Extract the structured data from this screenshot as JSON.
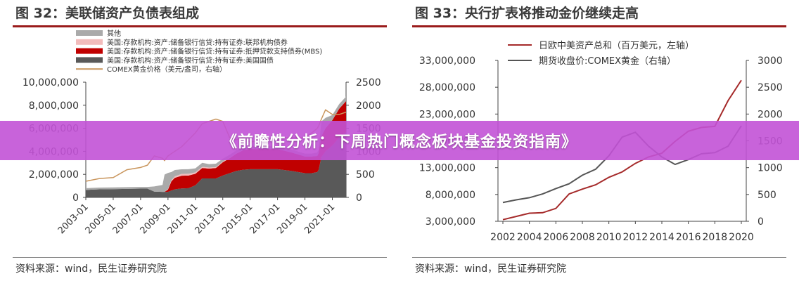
{
  "banner": {
    "text": "《前瞻性分析：下周热门概念板块基金投资指南》"
  },
  "left": {
    "title": "图 32：美联储资产负债表组成",
    "source": "资料来源：wind，民生证券研究院"
  },
  "right": {
    "title": "图 33：央行扩表将推动金价继续走高",
    "source": "资料来源：wind，民生证券研究院"
  },
  "colors": {
    "other": "#aaaaaa",
    "agency": "#f2bcbc",
    "mbs": "#c00000",
    "treasury": "#595959",
    "gold_left": "#c9955c",
    "assets_line": "#a52a2a",
    "gold_right": "#555555",
    "banner": "#c252d6"
  },
  "chart_data": [
    {
      "type": "area",
      "title": "",
      "stacked": true,
      "x": [
        2003.0,
        2004.0,
        2005.0,
        2006.0,
        2007.0,
        2007.5,
        2008.0,
        2008.6,
        2008.75,
        2009.0,
        2009.25,
        2009.5,
        2010.0,
        2010.5,
        2011.0,
        2011.5,
        2012.0,
        2012.5,
        2013.0,
        2013.5,
        2014.0,
        2014.5,
        2015.0,
        2016.0,
        2017.0,
        2018.0,
        2019.0,
        2019.5,
        2019.9,
        2020.0,
        2020.2,
        2020.5,
        2021.0,
        2021.5,
        2022.0
      ],
      "x_tick_labels": [
        "2003-01",
        "2005-01",
        "2007-01",
        "2009-01",
        "2011-01",
        "2013-01",
        "2015-01",
        "2017-01",
        "2019-01",
        "2021-01"
      ],
      "x_ticks": [
        2003,
        2005,
        2007,
        2009,
        2011,
        2013,
        2015,
        2017,
        2019,
        2021
      ],
      "y_left_ticks": [
        "0",
        "2,000,000",
        "4,000,000",
        "6,000,000",
        "8,000,000",
        "10,000,000"
      ],
      "y_left_tick_values": [
        0,
        2000000,
        4000000,
        6000000,
        8000000,
        10000000
      ],
      "y_right_ticks": [
        "0",
        "500",
        "1000",
        "1500",
        "2000",
        "2500"
      ],
      "y_right_tick_values": [
        0,
        500,
        1000,
        1500,
        2000,
        2500
      ],
      "ylim_left": [
        0,
        10000000
      ],
      "ylim_right": [
        0,
        2500
      ],
      "legend_position": "top-left",
      "series": [
        {
          "name": "美国:存款机构:资产:储备银行信贷:持有证券:美国国债",
          "axis": "left",
          "color_key": "treasury",
          "values": [
            650000,
            700000,
            720000,
            740000,
            760000,
            760000,
            500000,
            480000,
            480000,
            480000,
            600000,
            700000,
            780000,
            800000,
            1050000,
            1650000,
            1650000,
            1650000,
            1900000,
            2100000,
            2300000,
            2400000,
            2450000,
            2450000,
            2450000,
            2300000,
            2100000,
            2100000,
            2200000,
            2400000,
            3500000,
            4000000,
            4500000,
            5200000,
            5650000
          ]
        },
        {
          "name": "美国:存款机构:资产:储备银行信贷:持有证券:抵押贷款支持债券(MBS)",
          "axis": "left",
          "color_key": "mbs",
          "values": [
            0,
            0,
            0,
            0,
            0,
            0,
            0,
            0,
            0,
            200000,
            800000,
            1000000,
            1100000,
            1100000,
            1000000,
            900000,
            850000,
            900000,
            1150000,
            1300000,
            1500000,
            1700000,
            1750000,
            1750000,
            1750000,
            1600000,
            1450000,
            1450000,
            1400000,
            1450000,
            1800000,
            2000000,
            2200000,
            2500000,
            2700000
          ]
        },
        {
          "name": "美国:存款机构:资产:储备银行信贷:持有证券:联邦机构债券",
          "axis": "left",
          "color_key": "agency",
          "values": [
            0,
            0,
            0,
            0,
            0,
            0,
            0,
            0,
            0,
            50000,
            100000,
            130000,
            160000,
            150000,
            120000,
            100000,
            90000,
            80000,
            60000,
            50000,
            40000,
            30000,
            30000,
            20000,
            10000,
            5000,
            3000,
            3000,
            3000,
            3000,
            3000,
            3000,
            3000,
            3000,
            3000
          ]
        },
        {
          "name": "其他",
          "axis": "left",
          "color_key": "other",
          "values": [
            150000,
            150000,
            150000,
            150000,
            150000,
            150000,
            450000,
            600000,
            1500000,
            1400000,
            700000,
            550000,
            400000,
            400000,
            350000,
            350000,
            300000,
            300000,
            250000,
            250000,
            250000,
            250000,
            250000,
            250000,
            250000,
            250000,
            250000,
            250000,
            300000,
            300000,
            1300000,
            900000,
            450000,
            400000,
            400000
          ]
        },
        {
          "name": "COMEX黄金价格（美元/盎司，右轴）",
          "axis": "right",
          "type": "line",
          "color_key": "gold_left",
          "values": [
            350,
            410,
            430,
            600,
            650,
            700,
            900,
            850,
            800,
            900,
            950,
            1000,
            1100,
            1250,
            1400,
            1600,
            1650,
            1700,
            1650,
            1300,
            1250,
            1300,
            1200,
            1250,
            1300,
            1300,
            1300,
            1400,
            1500,
            1550,
            1700,
            1900,
            1800,
            1800,
            1850
          ]
        }
      ]
    },
    {
      "type": "line",
      "title": "",
      "x": [
        2002,
        2003,
        2004,
        2005,
        2006,
        2007,
        2008,
        2009,
        2010,
        2011,
        2012,
        2013,
        2014,
        2015,
        2016,
        2017,
        2018,
        2019,
        2020
      ],
      "x_tick_labels": [
        "2002",
        "2004",
        "2006",
        "2008",
        "2010",
        "2012",
        "2014",
        "2016",
        "2018",
        "2020"
      ],
      "y_left_ticks": [
        "3,000,000",
        "8,000,000",
        "13,000,000",
        "18,000,000",
        "23,000,000",
        "28,000,000",
        "33,000,000"
      ],
      "y_left_tick_values": [
        3000000,
        8000000,
        13000000,
        18000000,
        23000000,
        28000000,
        33000000
      ],
      "y_right_ticks": [
        "0",
        "500",
        "1000",
        "1500",
        "2000",
        "2500",
        "3000"
      ],
      "y_right_tick_values": [
        0,
        500,
        1000,
        1500,
        2000,
        2500,
        3000
      ],
      "ylim_left": [
        3000000,
        33000000
      ],
      "ylim_right": [
        0,
        3000
      ],
      "legend_position": "top-center",
      "series": [
        {
          "name": "日欧中美资产总和（百万美元，左轴）",
          "axis": "left",
          "color_key": "assets_line",
          "values": [
            3300000,
            3900000,
            4500000,
            4600000,
            5400000,
            8100000,
            9000000,
            9800000,
            11200000,
            12200000,
            13800000,
            15000000,
            15700000,
            17900000,
            19800000,
            20500000,
            20700000,
            25500000,
            29300000
          ]
        },
        {
          "name": "期货收盘价:COMEX黄金（右轴）",
          "axis": "right",
          "color_key": "gold_right",
          "values": [
            350,
            400,
            440,
            510,
            610,
            700,
            860,
            970,
            1220,
            1570,
            1660,
            1400,
            1200,
            1060,
            1150,
            1260,
            1280,
            1400,
            1780
          ]
        }
      ]
    }
  ]
}
